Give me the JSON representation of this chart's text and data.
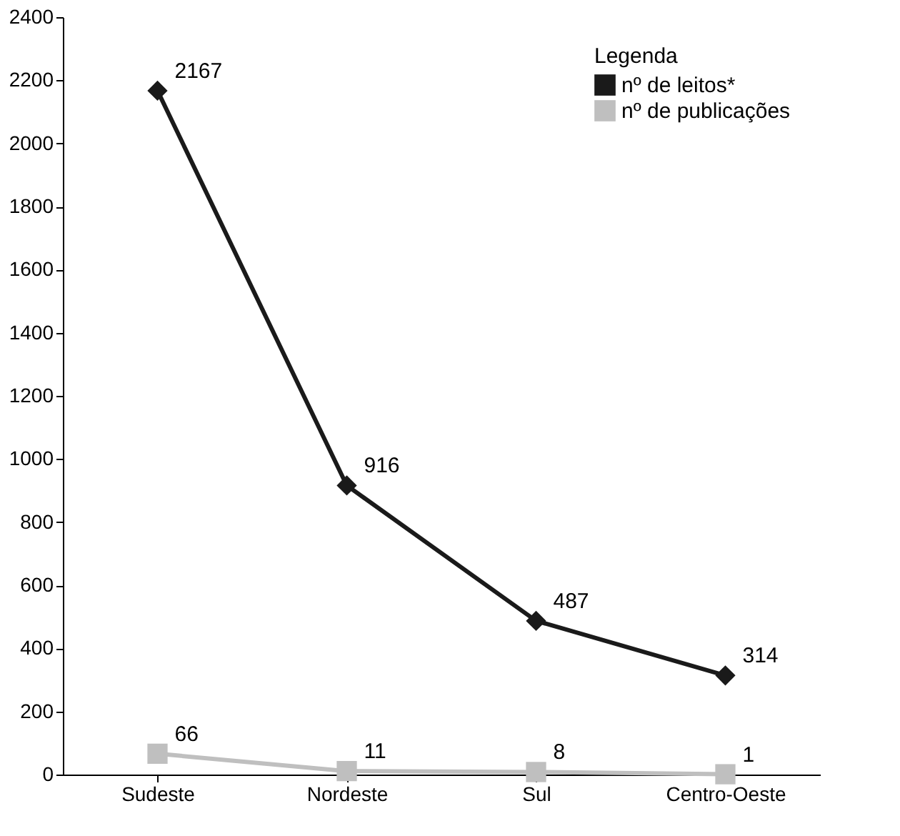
{
  "chart_data": {
    "type": "line",
    "categories": [
      "Sudeste",
      "Nordeste",
      "Sul",
      "Centro-Oeste"
    ],
    "series": [
      {
        "name": "nº de leitos*",
        "color": "#1a1a1a",
        "marker": "diamond",
        "values": [
          2167,
          916,
          487,
          314
        ]
      },
      {
        "name": "nº de publicações",
        "color": "#bfbfbf",
        "marker": "square",
        "values": [
          66,
          11,
          8,
          1
        ]
      }
    ],
    "legend_title": "Legenda",
    "legend": "top right",
    "ylim": [
      0,
      2400
    ],
    "yticks": [
      0,
      200,
      400,
      600,
      800,
      1000,
      1200,
      1400,
      1600,
      1800,
      2000,
      2200,
      2400
    ],
    "grid": false,
    "data_labels": true
  }
}
